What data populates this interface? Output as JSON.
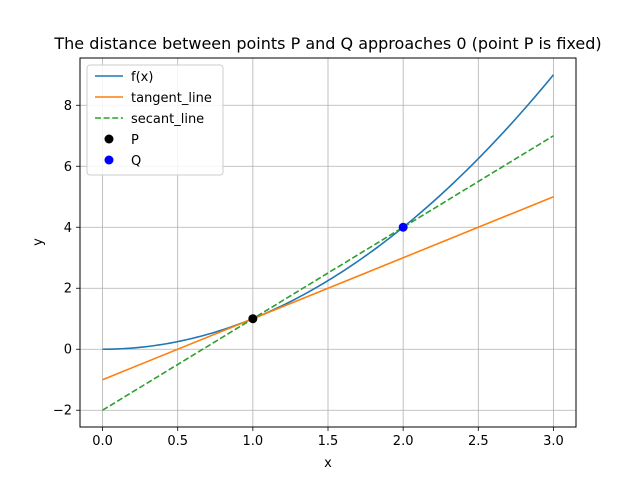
{
  "chart_data": {
    "type": "line",
    "title": "The distance between points P and Q approaches 0 (point P is fixed)",
    "xlabel": "x",
    "ylabel": "y",
    "xlim": [
      -0.15,
      3.15
    ],
    "ylim": [
      -2.55,
      9.55
    ],
    "x_ticks": [
      0.0,
      0.5,
      1.0,
      1.5,
      2.0,
      2.5,
      3.0
    ],
    "x_tick_labels": [
      "0.0",
      "0.5",
      "1.0",
      "1.5",
      "2.0",
      "2.5",
      "3.0"
    ],
    "y_ticks": [
      -2,
      0,
      2,
      4,
      6,
      8
    ],
    "y_tick_labels": [
      "−2",
      "0",
      "2",
      "4",
      "6",
      "8"
    ],
    "grid": true,
    "legend_position": "top-left",
    "series": [
      {
        "name": "f(x)",
        "style": "solid",
        "color": "#1f77b4",
        "x": [
          0.0,
          0.25,
          0.5,
          0.75,
          1.0,
          1.25,
          1.5,
          1.75,
          2.0,
          2.25,
          2.5,
          2.75,
          3.0
        ],
        "y": [
          0.0,
          0.0625,
          0.25,
          0.5625,
          1.0,
          1.5625,
          2.25,
          3.0625,
          4.0,
          5.0625,
          6.25,
          7.5625,
          9.0
        ]
      },
      {
        "name": "tangent_line",
        "style": "solid",
        "color": "#ff7f0e",
        "x": [
          0.0,
          3.0
        ],
        "y": [
          -1.0,
          5.0
        ]
      },
      {
        "name": "secant_line",
        "style": "dashed",
        "color": "#2ca02c",
        "x": [
          0.0,
          3.0
        ],
        "y": [
          -2.0,
          7.0
        ]
      }
    ],
    "points": [
      {
        "name": "P",
        "x": 1.0,
        "y": 1.0,
        "color": "#000000"
      },
      {
        "name": "Q",
        "x": 2.0,
        "y": 4.0,
        "color": "#0000ff"
      }
    ]
  }
}
